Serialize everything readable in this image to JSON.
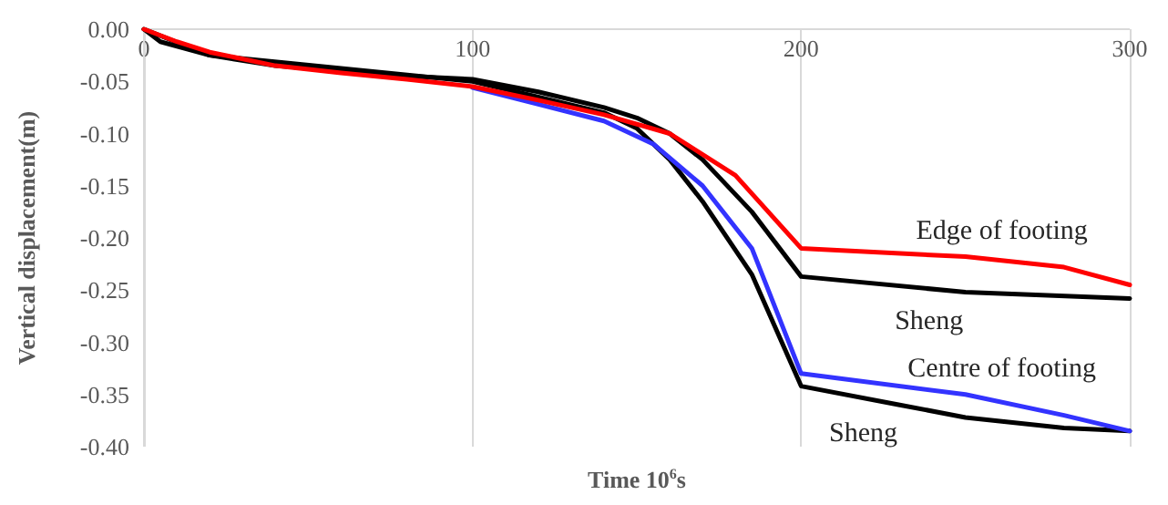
{
  "chart_data": {
    "type": "line",
    "xlabel": "Time 10$^{6}$s",
    "ylabel": "Vertical displacement(m)",
    "xlim": [
      0,
      300
    ],
    "xticks": [
      0,
      100,
      200,
      300
    ],
    "ylim": [
      -0.4,
      0
    ],
    "yticks": [
      {
        "value": 0,
        "label": "0.00"
      },
      {
        "value": -0.05,
        "label": "-0.05"
      },
      {
        "value": -0.1,
        "label": "-0.10"
      },
      {
        "value": -0.15,
        "label": "-0.15"
      },
      {
        "value": -0.2,
        "label": "-0.20"
      },
      {
        "value": -0.25,
        "label": "-0.25"
      },
      {
        "value": -0.3,
        "label": "-0.30"
      },
      {
        "value": -0.35,
        "label": "-0.35"
      },
      {
        "value": -0.4,
        "label": "-0.40"
      }
    ],
    "grid": "x",
    "marker": "none",
    "line_style": "solid",
    "series": [
      {
        "name": "Edge of footing",
        "color": "#ff0000",
        "x": [
          0,
          10,
          20,
          40,
          60,
          80,
          100,
          120,
          140,
          160,
          180,
          190,
          200,
          250,
          280,
          300
        ],
        "values": [
          0,
          -0.012,
          -0.022,
          -0.035,
          -0.042,
          -0.048,
          -0.055,
          -0.068,
          -0.082,
          -0.1,
          -0.14,
          -0.175,
          -0.21,
          -0.218,
          -0.228,
          -0.245
        ]
      },
      {
        "name": "Sheng",
        "color": "#000000",
        "x": [
          0,
          5,
          20,
          40,
          60,
          80,
          100,
          120,
          140,
          150,
          160,
          170,
          185,
          200,
          250,
          300
        ],
        "values": [
          0,
          -0.012,
          -0.025,
          -0.035,
          -0.04,
          -0.045,
          -0.048,
          -0.06,
          -0.075,
          -0.085,
          -0.1,
          -0.125,
          -0.175,
          -0.237,
          -0.252,
          -0.258
        ]
      },
      {
        "name": "Centre of footing",
        "color": "#3333ff",
        "x": [
          100,
          120,
          140,
          155,
          170,
          185,
          200,
          250,
          280,
          300
        ],
        "values": [
          -0.056,
          -0.072,
          -0.088,
          -0.11,
          -0.15,
          -0.21,
          -0.33,
          -0.35,
          -0.37,
          -0.385
        ]
      },
      {
        "name": "Sheng",
        "color": "#000000",
        "x": [
          0,
          20,
          100,
          120,
          140,
          150,
          160,
          170,
          185,
          200,
          230,
          250,
          280,
          300
        ],
        "values": [
          0,
          -0.025,
          -0.05,
          -0.065,
          -0.08,
          -0.095,
          -0.125,
          -0.165,
          -0.235,
          -0.342,
          -0.36,
          -0.372,
          -0.382,
          -0.385
        ]
      }
    ]
  }
}
